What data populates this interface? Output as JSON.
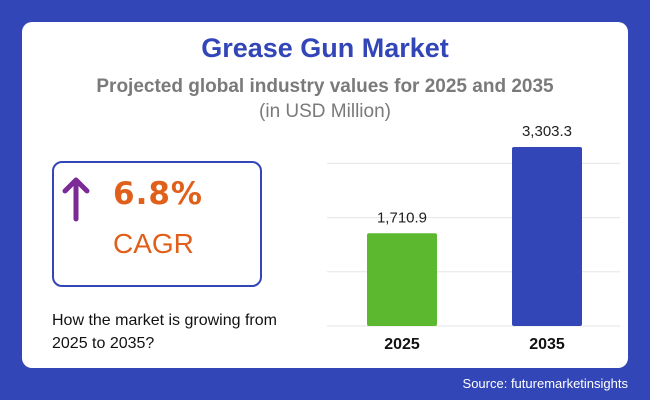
{
  "title": "Grease Gun Market",
  "subtitle": "Projected global industry values for 2025 and 2035",
  "unit": "(in USD Million)",
  "cagr": {
    "value": "6.8%",
    "label": "CAGR",
    "icon": "arrow-up-icon",
    "question": "How the market is growing from 2025 to 2035?"
  },
  "source": "Source: futuremarketinsights",
  "colors": {
    "background": "#3346b8",
    "bar_2025": "#5cb82e",
    "bar_2035": "#3346b8",
    "cagr": "#e0601b",
    "arrow": "#7b2a96"
  },
  "chart_data": {
    "type": "bar",
    "categories": [
      "2025",
      "2035"
    ],
    "values": [
      1710.9,
      3303.3
    ],
    "value_labels": [
      "1,710.9",
      "3,303.3"
    ],
    "title": "",
    "xlabel": "",
    "ylabel": "",
    "ylim": [
      0,
      3303.3
    ],
    "gridlines": [
      0,
      1000,
      2000,
      3000
    ],
    "grid": true
  }
}
